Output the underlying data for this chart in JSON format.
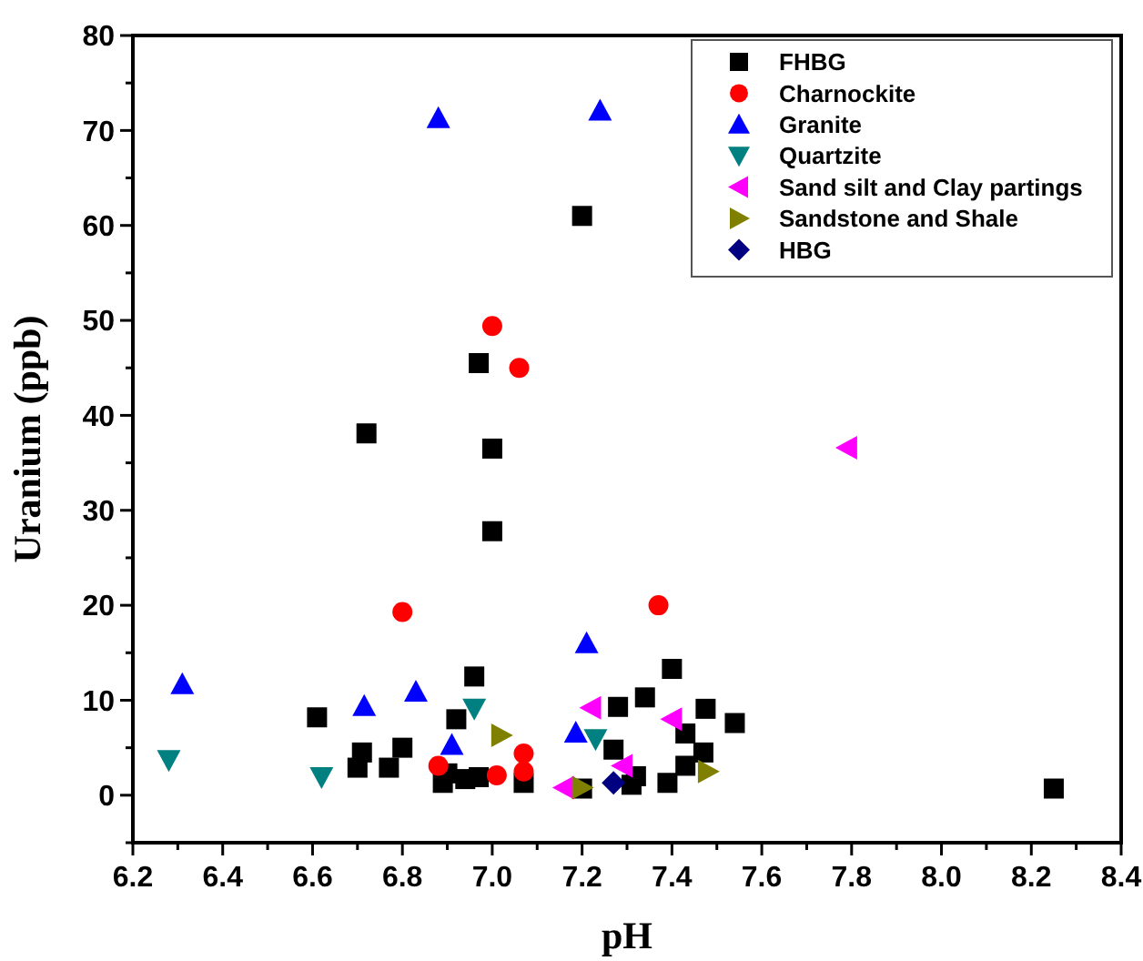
{
  "chart_data": {
    "type": "scatter",
    "xlabel": "pH",
    "ylabel": "Uranium (ppb)",
    "xlim": [
      6.2,
      8.4
    ],
    "ylim": [
      -5,
      80
    ],
    "xticks": [
      6.2,
      {
        "value": 6.3,
        "label": null
      },
      6.4,
      {
        "value": 6.5,
        "label": null
      },
      6.6,
      {
        "value": 6.7,
        "label": null
      },
      6.8,
      {
        "value": 6.9,
        "label": null
      },
      {
        "value": 7.0,
        "label": "7.0"
      },
      {
        "value": 7.1,
        "label": null
      },
      7.2,
      {
        "value": 7.3,
        "label": null
      },
      7.4,
      {
        "value": 7.5,
        "label": null
      },
      7.6,
      {
        "value": 7.7,
        "label": null
      },
      7.8,
      {
        "value": 7.9,
        "label": null
      },
      {
        "value": 8.0,
        "label": "8.0"
      },
      {
        "value": 8.1,
        "label": null
      },
      8.2,
      {
        "value": 8.3,
        "label": null
      },
      8.4
    ],
    "yticks": [
      {
        "value": -5,
        "label": null
      },
      0,
      {
        "value": 5,
        "label": null
      },
      10,
      {
        "value": 15,
        "label": null
      },
      20,
      {
        "value": 25,
        "label": null
      },
      30,
      {
        "value": 35,
        "label": null
      },
      40,
      {
        "value": 45,
        "label": null
      },
      50,
      {
        "value": 55,
        "label": null
      },
      60,
      {
        "value": 65,
        "label": null
      },
      70,
      {
        "value": 75,
        "label": null
      },
      80
    ],
    "legend": "top right",
    "grid": false,
    "series": [
      {
        "name": "FHBG",
        "color": "#000000",
        "marker": "square",
        "x": [
          6.61,
          6.7,
          6.71,
          6.77,
          6.8,
          6.92,
          6.96,
          6.89,
          6.9,
          6.94,
          6.97,
          7.07,
          7.2,
          7.2,
          6.97,
          6.72,
          7.0,
          7.0,
          7.4,
          7.34,
          7.28,
          7.475,
          7.54,
          7.43,
          7.27,
          7.47,
          7.43,
          7.32,
          7.31,
          7.39,
          8.25
        ],
        "values": [
          8.2,
          2.9,
          4.5,
          2.9,
          5.0,
          8.0,
          12.5,
          1.3,
          2.3,
          1.7,
          1.9,
          1.3,
          0.7,
          61,
          45.5,
          38.1,
          36.5,
          27.8,
          13.3,
          10.3,
          9.3,
          9.1,
          7.6,
          6.5,
          4.8,
          4.5,
          3.1,
          2.0,
          1.1,
          1.3,
          0.7
        ]
      },
      {
        "name": "Charnockite",
        "color": "#ff0000",
        "marker": "circle",
        "x": [
          7.0,
          7.06,
          6.8,
          7.37,
          6.88,
          7.01,
          7.07,
          7.07
        ],
        "values": [
          49.4,
          45.0,
          19.3,
          20.0,
          3.1,
          2.1,
          4.4,
          2.5
        ]
      },
      {
        "name": "Granite",
        "color": "#0000ff",
        "marker": "triangle",
        "x": [
          6.88,
          7.24,
          7.21,
          6.31,
          6.715,
          6.83,
          6.91,
          7.186
        ],
        "values": [
          71.3,
          72.1,
          16.0,
          11.7,
          9.4,
          10.9,
          5.3,
          6.6
        ]
      },
      {
        "name": "Quartzite",
        "color": "#008080",
        "marker": "triangle-down",
        "x": [
          6.28,
          6.62,
          6.96,
          7.23
        ],
        "values": [
          3.7,
          1.9,
          9.1,
          5.9
        ]
      },
      {
        "name": "Sand silt and Clay partings",
        "color": "#ff00ff",
        "marker": "triangle-left",
        "x": [
          7.22,
          7.4,
          7.29,
          7.16,
          7.79
        ],
        "values": [
          9.2,
          8.0,
          3.1,
          0.8,
          36.6
        ]
      },
      {
        "name": "Sandstone and Shale",
        "color": "#808000",
        "marker": "triangle-right",
        "x": [
          7.02,
          7.2,
          7.48
        ],
        "values": [
          6.3,
          0.8,
          2.5
        ]
      },
      {
        "name": "HBG",
        "color": "#000080",
        "marker": "diamond",
        "x": [
          7.27
        ],
        "values": [
          1.3
        ]
      }
    ]
  }
}
